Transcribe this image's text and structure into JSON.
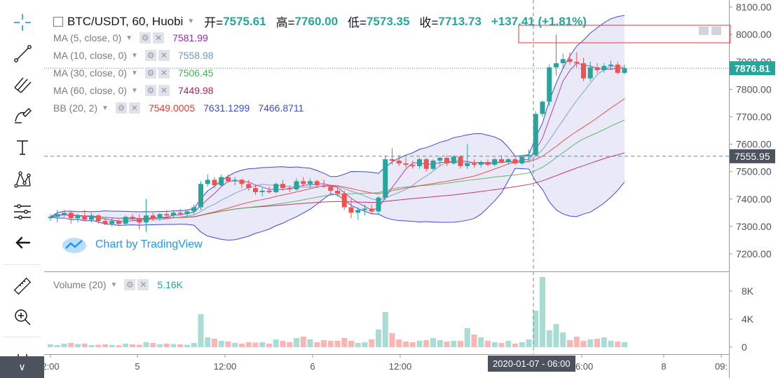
{
  "header": {
    "symbol": "BTC/USDT, 60, Huobi",
    "open_label": "开=",
    "open": "7575.61",
    "high_label": "高=",
    "high": "7760.00",
    "low_label": "低=",
    "low": "7573.35",
    "close_label": "收=",
    "close": "7713.73",
    "change": "+137.41 (+1.81%)"
  },
  "indicators": [
    {
      "label": "MA (5, close, 0)",
      "value": "7581.99",
      "color": "#9c27b0"
    },
    {
      "label": "MA (10, close, 0)",
      "value": "7558.98",
      "color": "#6b9ac4"
    },
    {
      "label": "MA (30, close, 0)",
      "value": "7506.45",
      "color": "#4caf50"
    },
    {
      "label": "MA (60, close, 0)",
      "value": "7449.98",
      "color": "#b71c5c"
    }
  ],
  "bb": {
    "label": "BB (20, 2)",
    "basis": "7549.0005",
    "upper": "7631.1299",
    "lower": "7466.8711"
  },
  "volume": {
    "label": "Volume (20)",
    "value": "5.16K"
  },
  "watermark": "Chart by TradingView",
  "crosshair_time": "2020-01-07 - 06:00",
  "price_labels": {
    "last": "7876.81",
    "crosshair": "7555.95"
  },
  "colors": {
    "up": "#26a69a",
    "down": "#ef5350",
    "bb_fill": "#e1e1f4",
    "bb_line": "#3f4ad6",
    "basis": "#e53935"
  },
  "tools": [
    "crosshair-icon",
    "trend-line-icon",
    "fib-icon",
    "brush-icon",
    "text-icon",
    "pattern-icon",
    "measure-icon",
    "back-arrow-icon",
    "ruler-icon",
    "zoom-in-icon",
    "magnet-icon"
  ],
  "chart_data": {
    "type": "candlestick",
    "title": "BTC/USDT, 60, Huobi",
    "y_ticks": [
      8100,
      8000,
      7900,
      7800,
      7700,
      7600,
      7500,
      7400,
      7300,
      7200
    ],
    "ylim": [
      7130,
      8130
    ],
    "x_ticks": [
      "2:00",
      "5",
      "12:00",
      "6",
      "12:00",
      "06:00",
      "8",
      "09:"
    ],
    "candles": [
      {
        "o": 7330,
        "h": 7345,
        "l": 7320,
        "c": 7335
      },
      {
        "o": 7335,
        "h": 7360,
        "l": 7315,
        "c": 7345
      },
      {
        "o": 7345,
        "h": 7360,
        "l": 7335,
        "c": 7350
      },
      {
        "o": 7350,
        "h": 7355,
        "l": 7310,
        "c": 7330
      },
      {
        "o": 7330,
        "h": 7345,
        "l": 7315,
        "c": 7340
      },
      {
        "o": 7340,
        "h": 7360,
        "l": 7320,
        "c": 7325
      },
      {
        "o": 7325,
        "h": 7350,
        "l": 7315,
        "c": 7340
      },
      {
        "o": 7340,
        "h": 7345,
        "l": 7310,
        "c": 7320
      },
      {
        "o": 7320,
        "h": 7330,
        "l": 7305,
        "c": 7310
      },
      {
        "o": 7310,
        "h": 7330,
        "l": 7300,
        "c": 7320
      },
      {
        "o": 7320,
        "h": 7325,
        "l": 7305,
        "c": 7310
      },
      {
        "o": 7310,
        "h": 7340,
        "l": 7305,
        "c": 7335
      },
      {
        "o": 7335,
        "h": 7345,
        "l": 7320,
        "c": 7330
      },
      {
        "o": 7330,
        "h": 7345,
        "l": 7290,
        "c": 7315
      },
      {
        "o": 7315,
        "h": 7400,
        "l": 7280,
        "c": 7340
      },
      {
        "o": 7340,
        "h": 7350,
        "l": 7320,
        "c": 7330
      },
      {
        "o": 7330,
        "h": 7350,
        "l": 7320,
        "c": 7345
      },
      {
        "o": 7345,
        "h": 7360,
        "l": 7330,
        "c": 7340
      },
      {
        "o": 7340,
        "h": 7360,
        "l": 7330,
        "c": 7350
      },
      {
        "o": 7350,
        "h": 7365,
        "l": 7340,
        "c": 7345
      },
      {
        "o": 7345,
        "h": 7360,
        "l": 7335,
        "c": 7355
      },
      {
        "o": 7355,
        "h": 7380,
        "l": 7345,
        "c": 7370
      },
      {
        "o": 7370,
        "h": 7465,
        "l": 7360,
        "c": 7455
      },
      {
        "o": 7455,
        "h": 7490,
        "l": 7445,
        "c": 7470
      },
      {
        "o": 7470,
        "h": 7480,
        "l": 7440,
        "c": 7450
      },
      {
        "o": 7450,
        "h": 7490,
        "l": 7445,
        "c": 7480
      },
      {
        "o": 7480,
        "h": 7490,
        "l": 7460,
        "c": 7465
      },
      {
        "o": 7465,
        "h": 7480,
        "l": 7450,
        "c": 7470
      },
      {
        "o": 7470,
        "h": 7475,
        "l": 7440,
        "c": 7455
      },
      {
        "o": 7455,
        "h": 7470,
        "l": 7430,
        "c": 7440
      },
      {
        "o": 7440,
        "h": 7450,
        "l": 7415,
        "c": 7425
      },
      {
        "o": 7425,
        "h": 7440,
        "l": 7410,
        "c": 7430
      },
      {
        "o": 7430,
        "h": 7445,
        "l": 7420,
        "c": 7425
      },
      {
        "o": 7425,
        "h": 7460,
        "l": 7420,
        "c": 7455
      },
      {
        "o": 7455,
        "h": 7470,
        "l": 7430,
        "c": 7440
      },
      {
        "o": 7440,
        "h": 7450,
        "l": 7425,
        "c": 7435
      },
      {
        "o": 7435,
        "h": 7475,
        "l": 7430,
        "c": 7465
      },
      {
        "o": 7465,
        "h": 7480,
        "l": 7445,
        "c": 7455
      },
      {
        "o": 7455,
        "h": 7475,
        "l": 7440,
        "c": 7465
      },
      {
        "o": 7465,
        "h": 7470,
        "l": 7440,
        "c": 7450
      },
      {
        "o": 7450,
        "h": 7470,
        "l": 7440,
        "c": 7445
      },
      {
        "o": 7445,
        "h": 7450,
        "l": 7420,
        "c": 7430
      },
      {
        "o": 7430,
        "h": 7440,
        "l": 7410,
        "c": 7420
      },
      {
        "o": 7420,
        "h": 7430,
        "l": 7360,
        "c": 7370
      },
      {
        "o": 7370,
        "h": 7400,
        "l": 7330,
        "c": 7350
      },
      {
        "o": 7350,
        "h": 7370,
        "l": 7325,
        "c": 7360
      },
      {
        "o": 7360,
        "h": 7380,
        "l": 7340,
        "c": 7365
      },
      {
        "o": 7365,
        "h": 7380,
        "l": 7345,
        "c": 7355
      },
      {
        "o": 7355,
        "h": 7410,
        "l": 7345,
        "c": 7405
      },
      {
        "o": 7405,
        "h": 7560,
        "l": 7395,
        "c": 7545
      },
      {
        "o": 7545,
        "h": 7585,
        "l": 7525,
        "c": 7540
      },
      {
        "o": 7540,
        "h": 7560,
        "l": 7520,
        "c": 7530
      },
      {
        "o": 7530,
        "h": 7550,
        "l": 7515,
        "c": 7525
      },
      {
        "o": 7525,
        "h": 7540,
        "l": 7510,
        "c": 7520
      },
      {
        "o": 7520,
        "h": 7550,
        "l": 7510,
        "c": 7545
      },
      {
        "o": 7545,
        "h": 7550,
        "l": 7500,
        "c": 7510
      },
      {
        "o": 7510,
        "h": 7545,
        "l": 7505,
        "c": 7540
      },
      {
        "o": 7540,
        "h": 7555,
        "l": 7520,
        "c": 7550
      },
      {
        "o": 7550,
        "h": 7560,
        "l": 7520,
        "c": 7530
      },
      {
        "o": 7530,
        "h": 7560,
        "l": 7525,
        "c": 7555
      },
      {
        "o": 7555,
        "h": 7560,
        "l": 7510,
        "c": 7520
      },
      {
        "o": 7520,
        "h": 7600,
        "l": 7510,
        "c": 7530
      },
      {
        "o": 7530,
        "h": 7545,
        "l": 7515,
        "c": 7525
      },
      {
        "o": 7525,
        "h": 7540,
        "l": 7515,
        "c": 7535
      },
      {
        "o": 7535,
        "h": 7545,
        "l": 7520,
        "c": 7525
      },
      {
        "o": 7525,
        "h": 7550,
        "l": 7520,
        "c": 7545
      },
      {
        "o": 7545,
        "h": 7560,
        "l": 7530,
        "c": 7535
      },
      {
        "o": 7535,
        "h": 7550,
        "l": 7525,
        "c": 7545
      },
      {
        "o": 7545,
        "h": 7555,
        "l": 7525,
        "c": 7530
      },
      {
        "o": 7530,
        "h": 7560,
        "l": 7525,
        "c": 7555
      },
      {
        "o": 7555,
        "h": 7580,
        "l": 7540,
        "c": 7560
      },
      {
        "o": 7560,
        "h": 7720,
        "l": 7555,
        "c": 7710
      },
      {
        "o": 7710,
        "h": 7760,
        "l": 7700,
        "c": 7755
      },
      {
        "o": 7755,
        "h": 7890,
        "l": 7740,
        "c": 7880
      },
      {
        "o": 7880,
        "h": 8000,
        "l": 7850,
        "c": 7895
      },
      {
        "o": 7895,
        "h": 7930,
        "l": 7880,
        "c": 7910
      },
      {
        "o": 7910,
        "h": 7935,
        "l": 7890,
        "c": 7900
      },
      {
        "o": 7900,
        "h": 7935,
        "l": 7880,
        "c": 7895
      },
      {
        "o": 7895,
        "h": 7915,
        "l": 7830,
        "c": 7840
      },
      {
        "o": 7840,
        "h": 7900,
        "l": 7830,
        "c": 7880
      },
      {
        "o": 7880,
        "h": 7895,
        "l": 7860,
        "c": 7870
      },
      {
        "o": 7870,
        "h": 7895,
        "l": 7860,
        "c": 7885
      },
      {
        "o": 7885,
        "h": 7905,
        "l": 7870,
        "c": 7890
      },
      {
        "o": 7890,
        "h": 7900,
        "l": 7855,
        "c": 7860
      },
      {
        "o": 7860,
        "h": 7890,
        "l": 7855,
        "c": 7877
      }
    ],
    "volume_ticks": [
      "8K",
      "4K",
      "0"
    ],
    "volume_max": 10000,
    "volumes": [
      400,
      300,
      500,
      600,
      450,
      500,
      300,
      350,
      400,
      300,
      250,
      500,
      400,
      350,
      700,
      600,
      400,
      500,
      450,
      400,
      350,
      600,
      4700,
      1400,
      1200,
      900,
      800,
      600,
      500,
      700,
      650,
      700,
      500,
      1100,
      900,
      700,
      1300,
      1500,
      1100,
      700,
      1000,
      900,
      900,
      1300,
      900,
      600,
      700,
      1100,
      2500,
      5000,
      2000,
      1100,
      800,
      700,
      900,
      1000,
      1300,
      1000,
      800,
      900,
      900,
      2700,
      1800,
      1400,
      900,
      700,
      600,
      900,
      500,
      700,
      1100,
      5200,
      10000,
      2400,
      3300,
      2100,
      1000,
      1500,
      900,
      1100,
      1200,
      1400,
      900,
      800,
      700
    ],
    "overlays": [
      "MA 5",
      "MA 10",
      "MA 30",
      "MA 60",
      "Bollinger Bands (20, 2)"
    ]
  }
}
